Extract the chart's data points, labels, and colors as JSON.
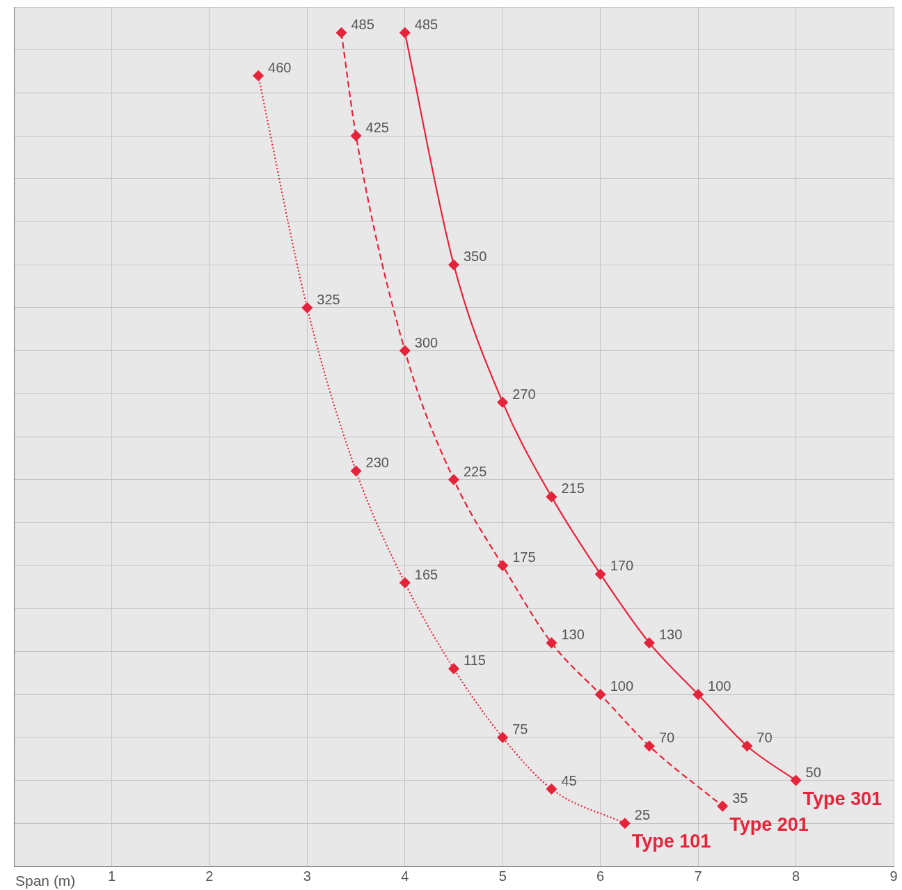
{
  "chart_data": {
    "type": "line",
    "xlabel": "Span (m)",
    "xlim": [
      0,
      9
    ],
    "xticks": [
      1,
      2,
      3,
      4,
      5,
      6,
      7,
      8,
      9
    ],
    "ylim": [
      0,
      500
    ],
    "yticks": [
      {
        "value": 0,
        "label": null
      },
      {
        "value": 25,
        "label": null
      },
      {
        "value": 50,
        "label": null
      },
      {
        "value": 75,
        "label": null
      },
      {
        "value": 100,
        "label": null
      },
      {
        "value": 125,
        "label": null
      },
      {
        "value": 150,
        "label": null
      },
      {
        "value": 175,
        "label": null
      },
      {
        "value": 200,
        "label": null
      },
      {
        "value": 225,
        "label": null
      },
      {
        "value": 250,
        "label": null
      },
      {
        "value": 275,
        "label": null
      },
      {
        "value": 300,
        "label": null
      },
      {
        "value": 325,
        "label": null
      },
      {
        "value": 350,
        "label": null
      },
      {
        "value": 375,
        "label": null
      },
      {
        "value": 400,
        "label": null
      },
      {
        "value": 425,
        "label": null
      },
      {
        "value": 450,
        "label": null
      },
      {
        "value": 475,
        "label": null
      },
      {
        "value": 500,
        "label": null
      }
    ],
    "tick_labels": "x",
    "grid": true,
    "legend": false,
    "data_labels": true,
    "marker": "diamond",
    "series": [
      {
        "name": "Type 301",
        "color": "#e5243b",
        "line_style": "solid",
        "x": [
          4,
          4.5,
          5,
          5.5,
          6,
          6.5,
          7,
          7.5,
          8
        ],
        "values": [
          485,
          350,
          270,
          215,
          170,
          130,
          100,
          70,
          50
        ]
      },
      {
        "name": "Type 201",
        "color": "#e5243b",
        "line_style": "dashed",
        "x": [
          3.35,
          3.5,
          4,
          4.5,
          5,
          5.5,
          6,
          6.5,
          7.25
        ],
        "values": [
          485,
          425,
          300,
          225,
          175,
          130,
          100,
          70,
          35
        ]
      },
      {
        "name": "Type 101",
        "color": "#e5243b",
        "line_style": "dotted",
        "x": [
          2.5,
          3,
          3.5,
          4,
          4.5,
          5,
          5.5,
          6.25
        ],
        "values": [
          460,
          325,
          230,
          165,
          115,
          75,
          45,
          25
        ]
      }
    ]
  }
}
